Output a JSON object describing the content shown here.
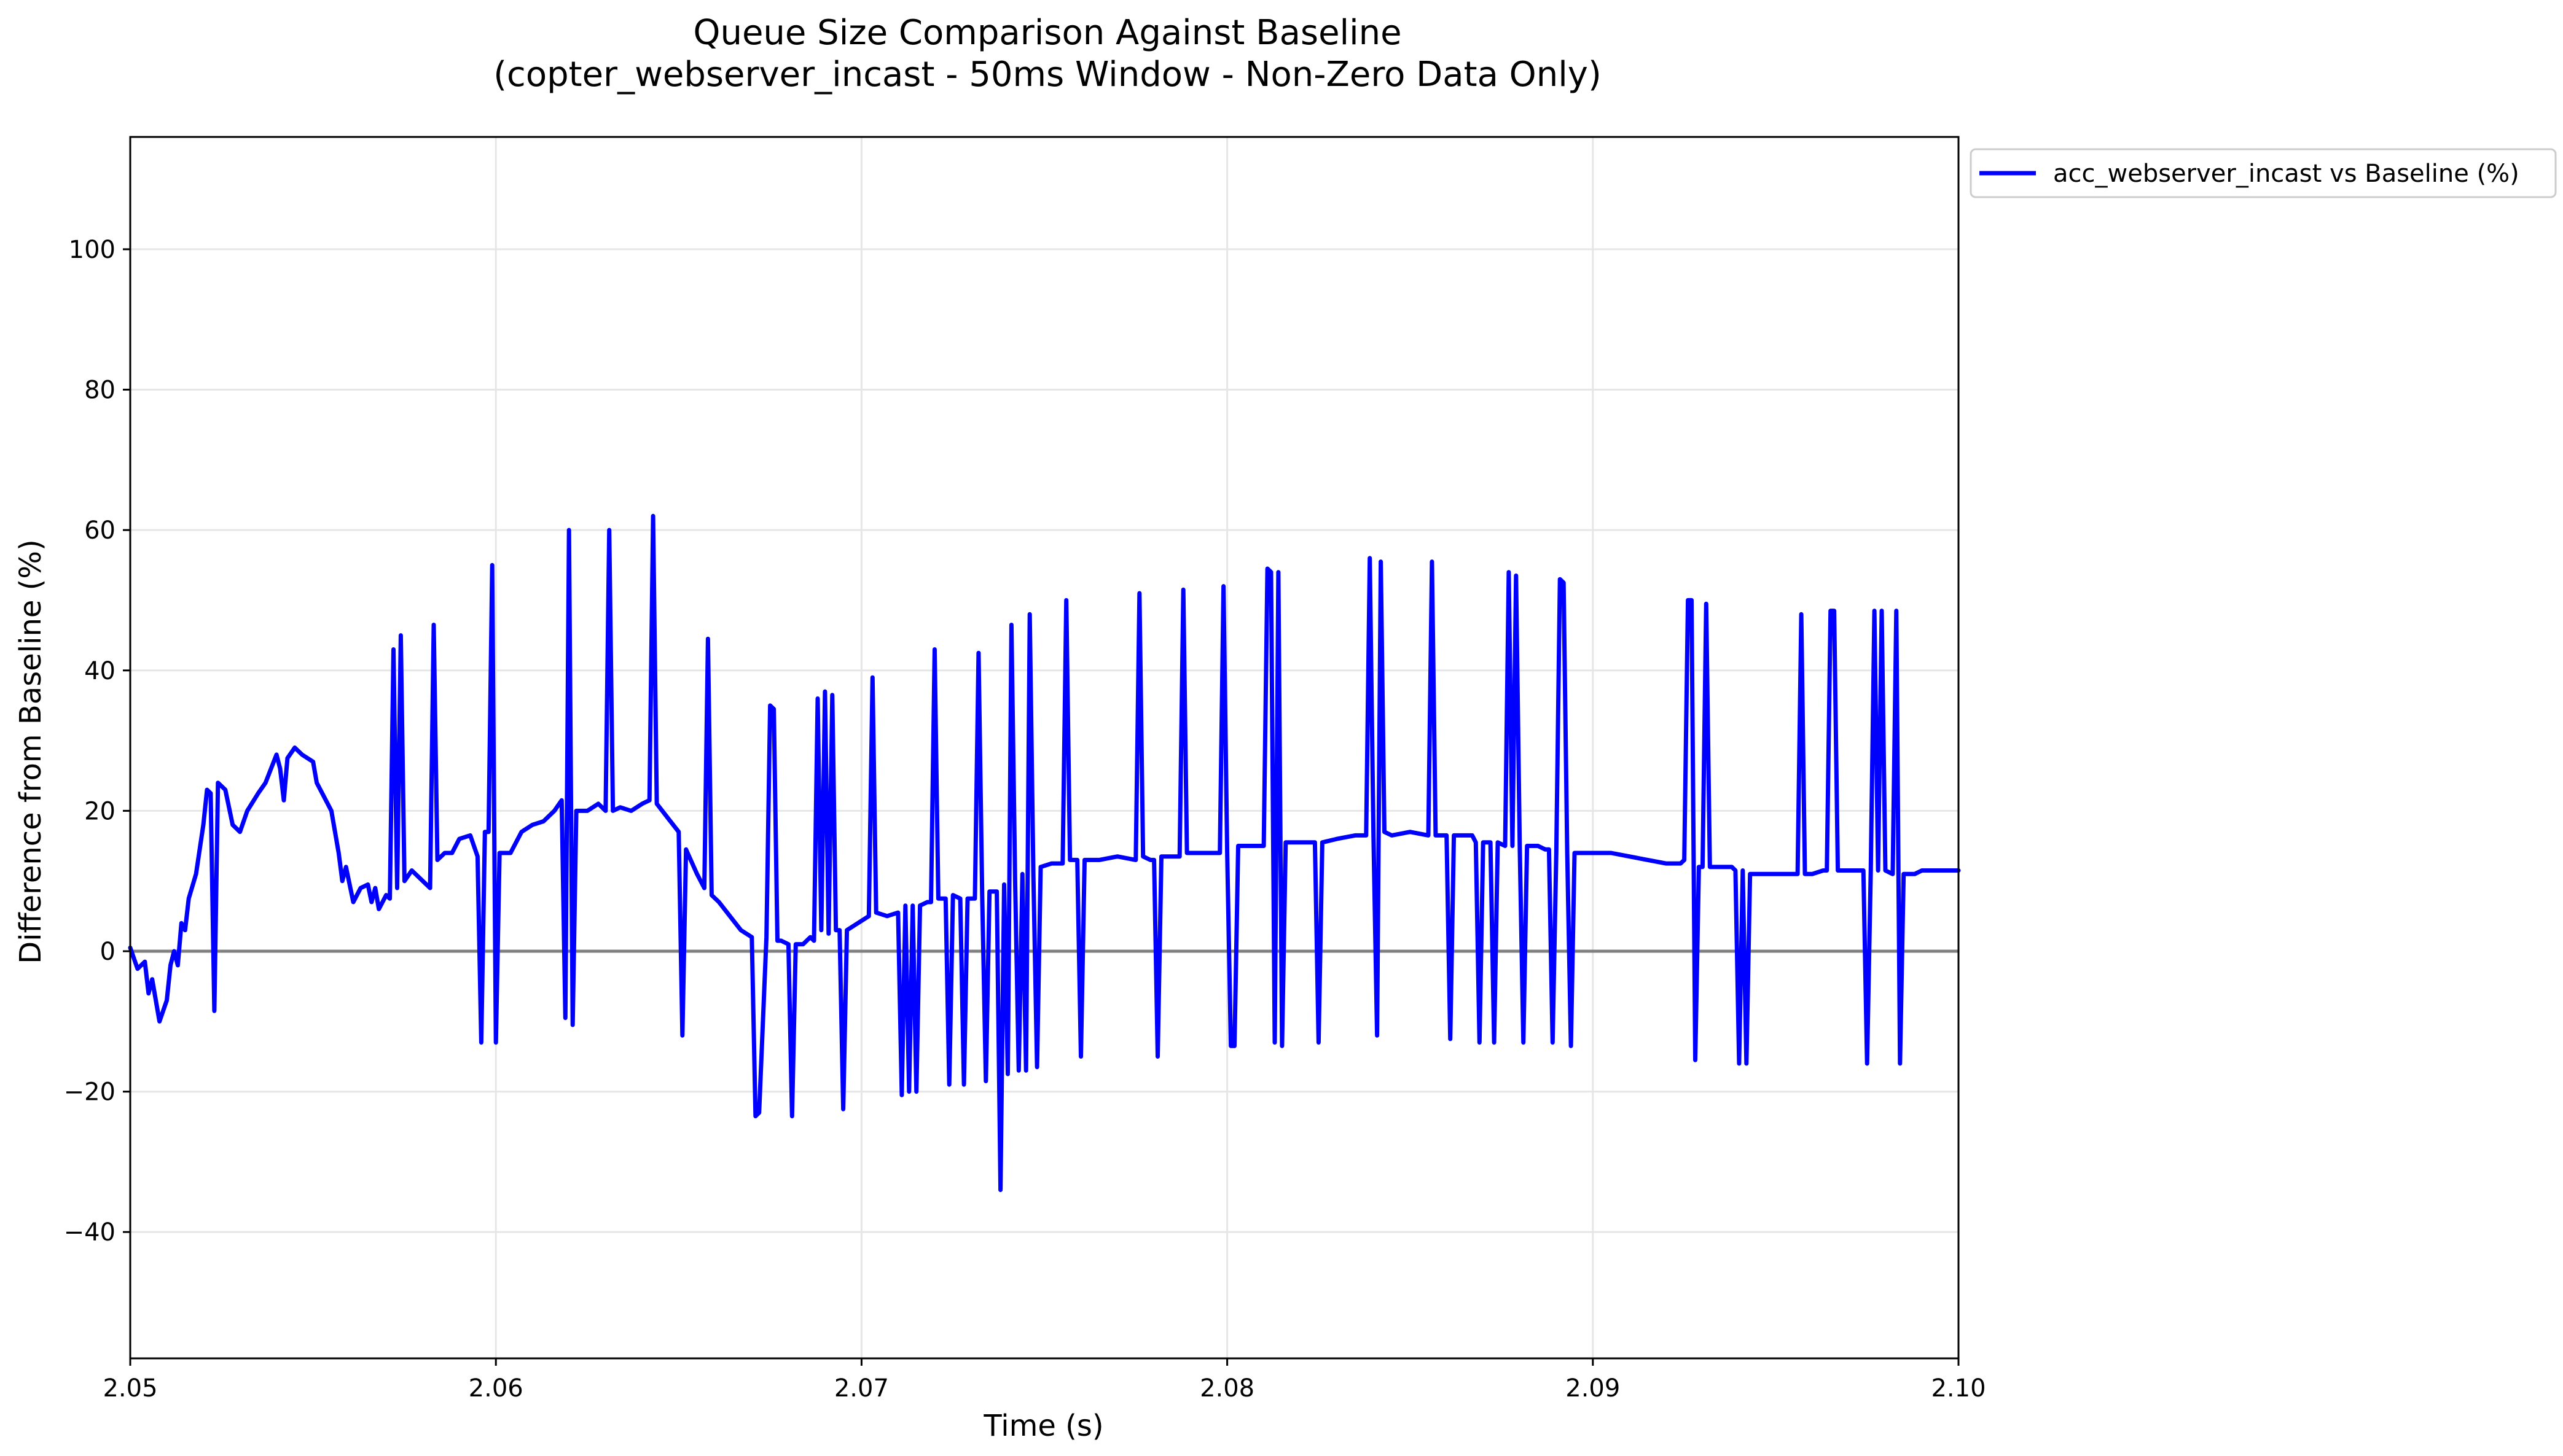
{
  "chart_data": {
    "type": "line",
    "title": "Queue Size Comparison Against Baseline",
    "subtitle": "(copter_webserver_incast - 50ms Window - Non-Zero Data Only)",
    "xlabel": "Time (s)",
    "ylabel": "Difference from Baseline (%)",
    "xlim": [
      2.05,
      2.1
    ],
    "ylim": [
      -58,
      116
    ],
    "x_ticks": [
      {
        "value": 2.05,
        "label": "2.05"
      },
      {
        "value": 2.06,
        "label": "2.06"
      },
      {
        "value": 2.07,
        "label": "2.07"
      },
      {
        "value": 2.08,
        "label": "2.08"
      },
      {
        "value": 2.09,
        "label": "2.09"
      },
      {
        "value": 2.1,
        "label": "2.10"
      }
    ],
    "y_ticks": [
      {
        "value": -40,
        "label": "−40"
      },
      {
        "value": -20,
        "label": "−20"
      },
      {
        "value": 0,
        "label": "0"
      },
      {
        "value": 20,
        "label": "20"
      },
      {
        "value": 40,
        "label": "40"
      },
      {
        "value": 60,
        "label": "60"
      },
      {
        "value": 80,
        "label": "80"
      },
      {
        "value": 100,
        "label": "100"
      }
    ],
    "grid": true,
    "baseline": 0,
    "legend_position": "outside top-right",
    "series": [
      {
        "name": "acc_webserver_incast vs Baseline (%)",
        "color": "#0000ff",
        "points": [
          [
            2.05,
            0.5
          ],
          [
            2.0502,
            -2.5
          ],
          [
            2.0504,
            -1.5
          ],
          [
            2.0505,
            -6
          ],
          [
            2.0506,
            -4
          ],
          [
            2.0508,
            -10
          ],
          [
            2.051,
            -7
          ],
          [
            2.0511,
            -2
          ],
          [
            2.0512,
            0
          ],
          [
            2.0513,
            -2
          ],
          [
            2.0514,
            4
          ],
          [
            2.0515,
            3
          ],
          [
            2.0516,
            7.5
          ],
          [
            2.0518,
            11
          ],
          [
            2.052,
            18
          ],
          [
            2.0521,
            23
          ],
          [
            2.0522,
            22.5
          ],
          [
            2.0523,
            -8.5
          ],
          [
            2.0524,
            24
          ],
          [
            2.0526,
            23
          ],
          [
            2.0528,
            18
          ],
          [
            2.053,
            17
          ],
          [
            2.0532,
            20
          ],
          [
            2.0535,
            22.5
          ],
          [
            2.0537,
            24
          ],
          [
            2.054,
            28
          ],
          [
            2.0541,
            26
          ],
          [
            2.0542,
            21.5
          ],
          [
            2.0543,
            27.5
          ],
          [
            2.0545,
            29
          ],
          [
            2.0547,
            28
          ],
          [
            2.055,
            27
          ],
          [
            2.0551,
            24
          ],
          [
            2.0553,
            22
          ],
          [
            2.0555,
            20
          ],
          [
            2.0557,
            14
          ],
          [
            2.0558,
            10
          ],
          [
            2.0559,
            12
          ],
          [
            2.0561,
            7
          ],
          [
            2.0563,
            9
          ],
          [
            2.0565,
            9.5
          ],
          [
            2.0566,
            7
          ],
          [
            2.0567,
            9
          ],
          [
            2.0568,
            6
          ],
          [
            2.057,
            8
          ],
          [
            2.0571,
            7.5
          ],
          [
            2.0572,
            43
          ],
          [
            2.0573,
            9
          ],
          [
            2.0574,
            45
          ],
          [
            2.0575,
            10
          ],
          [
            2.0577,
            11.5
          ],
          [
            2.058,
            10
          ],
          [
            2.0582,
            9
          ],
          [
            2.0583,
            46.5
          ],
          [
            2.0584,
            13
          ],
          [
            2.0586,
            14
          ],
          [
            2.0588,
            14
          ],
          [
            2.059,
            16
          ],
          [
            2.0593,
            16.5
          ],
          [
            2.0595,
            13.5
          ],
          [
            2.0596,
            -13
          ],
          [
            2.0597,
            17
          ],
          [
            2.0598,
            17
          ],
          [
            2.0599,
            55
          ],
          [
            2.06,
            -13
          ],
          [
            2.0601,
            14
          ],
          [
            2.0604,
            14
          ],
          [
            2.0607,
            17
          ],
          [
            2.061,
            18
          ],
          [
            2.0613,
            18.5
          ],
          [
            2.0616,
            20
          ],
          [
            2.0618,
            21.5
          ],
          [
            2.0619,
            -9.5
          ],
          [
            2.062,
            60
          ],
          [
            2.0621,
            -10.5
          ],
          [
            2.0622,
            20
          ],
          [
            2.0625,
            20
          ],
          [
            2.0628,
            21
          ],
          [
            2.063,
            20
          ],
          [
            2.0631,
            60
          ],
          [
            2.0632,
            20
          ],
          [
            2.0634,
            20.5
          ],
          [
            2.0637,
            20
          ],
          [
            2.064,
            21
          ],
          [
            2.0642,
            21.5
          ],
          [
            2.0643,
            62
          ],
          [
            2.0644,
            21
          ],
          [
            2.0647,
            19
          ],
          [
            2.065,
            17
          ],
          [
            2.0651,
            -12
          ],
          [
            2.0652,
            14.5
          ],
          [
            2.0655,
            11
          ],
          [
            2.0657,
            9
          ],
          [
            2.0658,
            44.5
          ],
          [
            2.0659,
            8
          ],
          [
            2.0661,
            7
          ],
          [
            2.0664,
            5
          ],
          [
            2.0667,
            3
          ],
          [
            2.067,
            2
          ],
          [
            2.0671,
            -23.5
          ],
          [
            2.0672,
            -23
          ],
          [
            2.0674,
            2
          ],
          [
            2.0675,
            35
          ],
          [
            2.0676,
            34.5
          ],
          [
            2.0677,
            1.5
          ],
          [
            2.0678,
            1.5
          ],
          [
            2.068,
            1
          ],
          [
            2.0681,
            -23.5
          ],
          [
            2.0682,
            1
          ],
          [
            2.0684,
            1
          ],
          [
            2.0686,
            2
          ],
          [
            2.0687,
            1.5
          ],
          [
            2.0688,
            36
          ],
          [
            2.0689,
            3
          ],
          [
            2.069,
            37
          ],
          [
            2.0691,
            2.5
          ],
          [
            2.0692,
            36.5
          ],
          [
            2.0693,
            3
          ],
          [
            2.0694,
            3
          ],
          [
            2.0695,
            -22.5
          ],
          [
            2.0696,
            3
          ],
          [
            2.0699,
            4
          ],
          [
            2.0702,
            5
          ],
          [
            2.0703,
            39
          ],
          [
            2.0704,
            5.5
          ],
          [
            2.0707,
            5
          ],
          [
            2.071,
            5.5
          ],
          [
            2.0711,
            -20.5
          ],
          [
            2.0712,
            6.5
          ],
          [
            2.0713,
            -20
          ],
          [
            2.0714,
            6.5
          ],
          [
            2.0715,
            -20
          ],
          [
            2.0716,
            6.5
          ],
          [
            2.0718,
            7
          ],
          [
            2.0719,
            7
          ],
          [
            2.072,
            43
          ],
          [
            2.0721,
            7.5
          ],
          [
            2.0723,
            7.5
          ],
          [
            2.0724,
            -19
          ],
          [
            2.0725,
            8
          ],
          [
            2.0727,
            7.5
          ],
          [
            2.0728,
            -19
          ],
          [
            2.0729,
            7.5
          ],
          [
            2.0731,
            7.5
          ],
          [
            2.0732,
            42.5
          ],
          [
            2.0733,
            8
          ],
          [
            2.0734,
            -18.5
          ],
          [
            2.0735,
            8.5
          ],
          [
            2.0737,
            8.5
          ],
          [
            2.0738,
            -34
          ],
          [
            2.0739,
            9.5
          ],
          [
            2.074,
            -17.5
          ],
          [
            2.0741,
            46.5
          ],
          [
            2.0742,
            10
          ],
          [
            2.0743,
            -17
          ],
          [
            2.0744,
            11
          ],
          [
            2.0745,
            -17
          ],
          [
            2.0746,
            48
          ],
          [
            2.0747,
            11
          ],
          [
            2.0748,
            -16.5
          ],
          [
            2.0749,
            12
          ],
          [
            2.0752,
            12.5
          ],
          [
            2.0755,
            12.5
          ],
          [
            2.0756,
            50
          ],
          [
            2.0757,
            13
          ],
          [
            2.0759,
            13
          ],
          [
            2.076,
            -15
          ],
          [
            2.0761,
            13
          ],
          [
            2.0765,
            13
          ],
          [
            2.077,
            13.5
          ],
          [
            2.0775,
            13
          ],
          [
            2.0776,
            51
          ],
          [
            2.0777,
            13.5
          ],
          [
            2.0779,
            13
          ],
          [
            2.078,
            13
          ],
          [
            2.0781,
            -15
          ],
          [
            2.0782,
            13.5
          ],
          [
            2.0785,
            13.5
          ],
          [
            2.0787,
            13.5
          ],
          [
            2.0788,
            51.5
          ],
          [
            2.0789,
            14
          ],
          [
            2.0792,
            14
          ],
          [
            2.0795,
            14
          ],
          [
            2.0798,
            14
          ],
          [
            2.0799,
            52
          ],
          [
            2.08,
            14
          ],
          [
            2.0801,
            -13.5
          ],
          [
            2.0802,
            -13.5
          ],
          [
            2.0803,
            15
          ],
          [
            2.0806,
            15
          ],
          [
            2.0808,
            15
          ],
          [
            2.081,
            15
          ],
          [
            2.0811,
            54.5
          ],
          [
            2.0812,
            54
          ],
          [
            2.0813,
            -13
          ],
          [
            2.0814,
            54
          ],
          [
            2.0815,
            -13.5
          ],
          [
            2.0816,
            15.5
          ],
          [
            2.082,
            15.5
          ],
          [
            2.0824,
            15.5
          ],
          [
            2.0825,
            -13
          ],
          [
            2.0826,
            15.5
          ],
          [
            2.083,
            16
          ],
          [
            2.0835,
            16.5
          ],
          [
            2.0838,
            16.5
          ],
          [
            2.0839,
            56
          ],
          [
            2.084,
            16.5
          ],
          [
            2.0841,
            -12
          ],
          [
            2.0842,
            55.5
          ],
          [
            2.0843,
            17
          ],
          [
            2.0845,
            16.5
          ],
          [
            2.085,
            17
          ],
          [
            2.0855,
            16.5
          ],
          [
            2.0856,
            55.5
          ],
          [
            2.0857,
            16.5
          ],
          [
            2.086,
            16.5
          ],
          [
            2.0861,
            -12.5
          ],
          [
            2.0862,
            16.5
          ],
          [
            2.0865,
            16.5
          ],
          [
            2.0867,
            16.5
          ],
          [
            2.0868,
            15.5
          ],
          [
            2.0869,
            -13
          ],
          [
            2.087,
            15.5
          ],
          [
            2.0872,
            15.5
          ],
          [
            2.0873,
            -13
          ],
          [
            2.0874,
            15.5
          ],
          [
            2.0876,
            15
          ],
          [
            2.0877,
            54
          ],
          [
            2.0878,
            15
          ],
          [
            2.0879,
            53.5
          ],
          [
            2.088,
            15
          ],
          [
            2.0881,
            -13
          ],
          [
            2.0882,
            15
          ],
          [
            2.0885,
            15
          ],
          [
            2.0887,
            14.5
          ],
          [
            2.0888,
            14.5
          ],
          [
            2.0889,
            -13
          ],
          [
            2.089,
            14
          ],
          [
            2.0891,
            53
          ],
          [
            2.0892,
            52.5
          ],
          [
            2.0893,
            14
          ],
          [
            2.0894,
            -13.5
          ],
          [
            2.0895,
            14
          ],
          [
            2.09,
            14
          ],
          [
            2.0905,
            14
          ],
          [
            2.091,
            13.5
          ],
          [
            2.0915,
            13
          ],
          [
            2.092,
            12.5
          ],
          [
            2.0924,
            12.5
          ],
          [
            2.0925,
            13
          ],
          [
            2.0926,
            50
          ],
          [
            2.0927,
            50
          ],
          [
            2.0928,
            -15.5
          ],
          [
            2.0929,
            12
          ],
          [
            2.093,
            12
          ],
          [
            2.0931,
            49.5
          ],
          [
            2.0932,
            12
          ],
          [
            2.0935,
            12
          ],
          [
            2.0938,
            12
          ],
          [
            2.0939,
            11.5
          ],
          [
            2.094,
            -16
          ],
          [
            2.0941,
            11.5
          ],
          [
            2.0942,
            -16
          ],
          [
            2.0943,
            11
          ],
          [
            2.0946,
            11
          ],
          [
            2.095,
            11
          ],
          [
            2.0955,
            11
          ],
          [
            2.0956,
            11
          ],
          [
            2.0957,
            48
          ],
          [
            2.0958,
            11
          ],
          [
            2.096,
            11
          ],
          [
            2.0963,
            11.5
          ],
          [
            2.0964,
            11.5
          ],
          [
            2.0965,
            48.5
          ],
          [
            2.0966,
            48.5
          ],
          [
            2.0967,
            11.5
          ],
          [
            2.097,
            11.5
          ],
          [
            2.0972,
            11.5
          ],
          [
            2.0974,
            11.5
          ],
          [
            2.0975,
            -16
          ],
          [
            2.0976,
            11.5
          ],
          [
            2.0977,
            48.5
          ],
          [
            2.0978,
            11.5
          ],
          [
            2.0979,
            48.5
          ],
          [
            2.098,
            11.5
          ],
          [
            2.0982,
            11
          ],
          [
            2.0983,
            48.5
          ],
          [
            2.0984,
            -16
          ],
          [
            2.0985,
            11
          ],
          [
            2.0988,
            11
          ],
          [
            2.099,
            11.5
          ],
          [
            2.0993,
            11.5
          ],
          [
            2.0995,
            11.5
          ],
          [
            2.1,
            11.5
          ]
        ]
      }
    ]
  }
}
